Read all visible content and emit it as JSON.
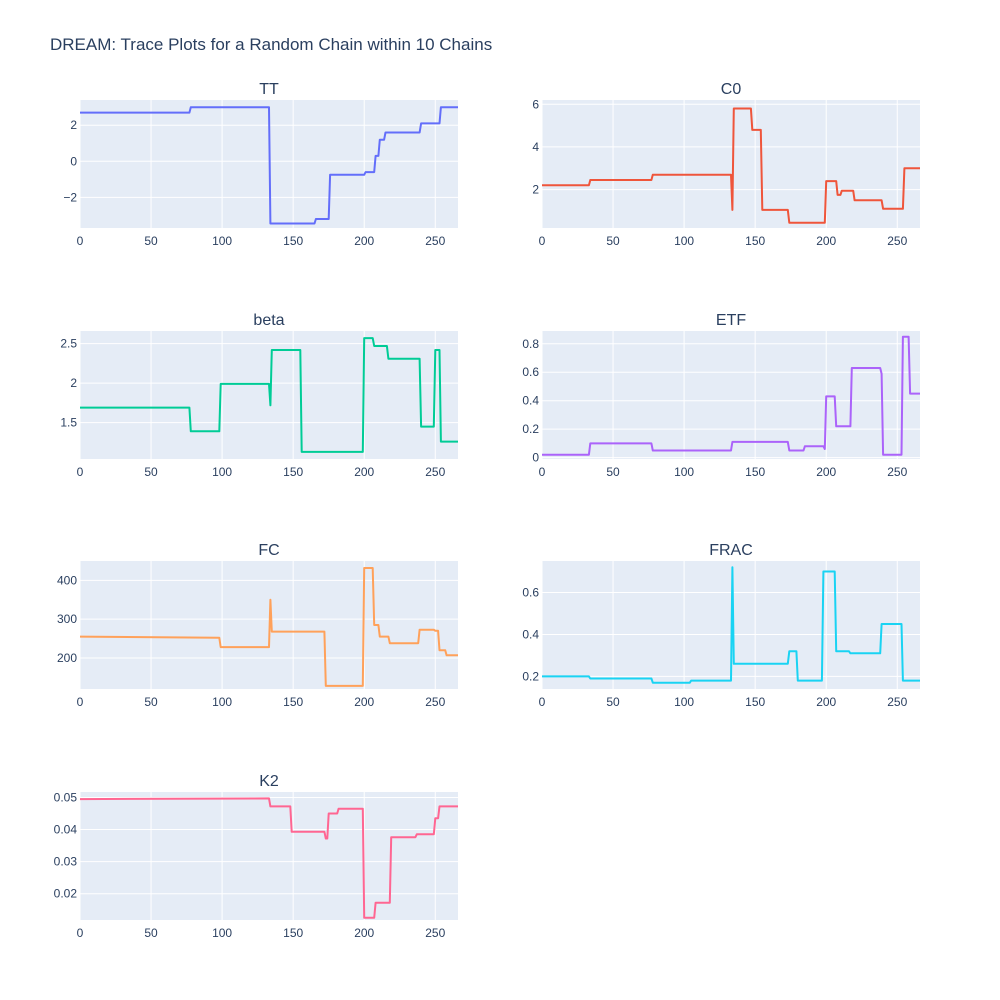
{
  "title": "DREAM: Trace Plots for a Random Chain within 10 Chains",
  "chart_data": [
    {
      "type": "line",
      "title": "TT",
      "xlim": [
        0,
        266
      ],
      "ylim": [
        -3.7,
        3.4
      ],
      "xticks": [
        0,
        50,
        100,
        150,
        200,
        250
      ],
      "yticks": [
        -2,
        0,
        2
      ],
      "ytick_labels": [
        "−2",
        "0",
        "2"
      ],
      "series": [
        {
          "color": "#636efa",
          "x": [
            0,
            77,
            78,
            133,
            134,
            165,
            166,
            175,
            176,
            200,
            201,
            207,
            208,
            210,
            211,
            214,
            215,
            225,
            226,
            239,
            240,
            253,
            254,
            266
          ],
          "y": [
            2.7,
            2.7,
            3.0,
            3.0,
            -3.45,
            -3.45,
            -3.2,
            -3.2,
            -0.75,
            -0.75,
            -0.6,
            -0.6,
            0.3,
            0.3,
            1.2,
            1.2,
            1.6,
            1.6,
            1.6,
            1.6,
            2.1,
            2.1,
            3.0,
            3.0
          ]
        }
      ]
    },
    {
      "type": "line",
      "title": "C0",
      "xlim": [
        0,
        266
      ],
      "ylim": [
        0.2,
        6.2
      ],
      "xticks": [
        0,
        50,
        100,
        150,
        200,
        250
      ],
      "yticks": [
        2,
        4,
        6
      ],
      "ytick_labels": [
        "2",
        "4",
        "6"
      ],
      "series": [
        {
          "color": "#EF553B",
          "x": [
            0,
            33,
            34,
            77,
            78,
            133,
            134,
            135,
            136,
            147,
            148,
            154,
            155,
            173,
            174,
            199,
            200,
            207,
            208,
            210,
            211,
            216,
            217,
            219,
            220,
            239,
            240,
            254,
            255,
            266
          ],
          "y": [
            2.2,
            2.2,
            2.45,
            2.45,
            2.7,
            2.7,
            1.05,
            5.8,
            5.8,
            5.8,
            4.8,
            4.8,
            1.05,
            1.05,
            0.45,
            0.45,
            2.4,
            2.4,
            1.75,
            1.75,
            1.95,
            1.95,
            1.95,
            1.95,
            1.5,
            1.5,
            1.1,
            1.1,
            3.0,
            3.0
          ]
        }
      ]
    },
    {
      "type": "line",
      "title": "beta",
      "xlim": [
        0,
        266
      ],
      "ylim": [
        1.04,
        2.66
      ],
      "xticks": [
        0,
        50,
        100,
        150,
        200,
        250
      ],
      "yticks": [
        1.5,
        2,
        2.5
      ],
      "ytick_labels": [
        "1.5",
        "2",
        "2.5"
      ],
      "series": [
        {
          "color": "#00cc96",
          "x": [
            0,
            77,
            78,
            98,
            99,
            133,
            134,
            135,
            136,
            155,
            156,
            199,
            200,
            206,
            207,
            216,
            217,
            239,
            240,
            249,
            250,
            253,
            254,
            266
          ],
          "y": [
            1.69,
            1.69,
            1.39,
            1.39,
            1.99,
            1.99,
            1.72,
            2.42,
            2.42,
            2.42,
            1.13,
            1.13,
            2.57,
            2.57,
            2.47,
            2.47,
            2.31,
            2.31,
            1.45,
            1.45,
            2.42,
            2.42,
            1.26,
            1.26
          ]
        }
      ]
    },
    {
      "type": "line",
      "title": "ETF",
      "xlim": [
        0,
        266
      ],
      "ylim": [
        -0.01,
        0.89
      ],
      "xticks": [
        0,
        50,
        100,
        150,
        200,
        250
      ],
      "yticks": [
        0,
        0.2,
        0.4,
        0.6,
        0.8
      ],
      "ytick_labels": [
        "0",
        "0.2",
        "0.4",
        "0.6",
        "0.8"
      ],
      "series": [
        {
          "color": "#ab63fa",
          "x": [
            0,
            33,
            34,
            77,
            78,
            133,
            134,
            173,
            174,
            184,
            185,
            198,
            199,
            200,
            201,
            206,
            207,
            217,
            218,
            238,
            239,
            240,
            241,
            253,
            254,
            258,
            259,
            266
          ],
          "y": [
            0.02,
            0.02,
            0.1,
            0.1,
            0.05,
            0.05,
            0.11,
            0.11,
            0.05,
            0.05,
            0.08,
            0.08,
            0.06,
            0.43,
            0.43,
            0.43,
            0.22,
            0.22,
            0.63,
            0.63,
            0.59,
            0.02,
            0.02,
            0.02,
            0.85,
            0.85,
            0.45,
            0.45
          ]
        }
      ]
    },
    {
      "type": "line",
      "title": "FC",
      "xlim": [
        0,
        266
      ],
      "ylim": [
        120,
        450
      ],
      "xticks": [
        0,
        50,
        100,
        150,
        200,
        250
      ],
      "yticks": [
        200,
        300,
        400
      ],
      "ytick_labels": [
        "200",
        "300",
        "400"
      ],
      "series": [
        {
          "color": "#FFA15A",
          "x": [
            0,
            98,
            99,
            133,
            134,
            135,
            136,
            172,
            173,
            199,
            200,
            206,
            207,
            210,
            211,
            217,
            218,
            238,
            239,
            249,
            250,
            252,
            253,
            257,
            258,
            266
          ],
          "y": [
            255,
            252,
            228,
            228,
            350,
            268,
            268,
            268,
            128,
            128,
            432,
            432,
            285,
            285,
            255,
            255,
            238,
            238,
            273,
            273,
            270,
            270,
            220,
            220,
            207,
            207
          ]
        }
      ]
    },
    {
      "type": "line",
      "title": "FRAC",
      "xlim": [
        0,
        266
      ],
      "ylim": [
        0.14,
        0.75
      ],
      "xticks": [
        0,
        50,
        100,
        150,
        200,
        250
      ],
      "yticks": [
        0.2,
        0.4,
        0.6
      ],
      "ytick_labels": [
        "0.2",
        "0.4",
        "0.6"
      ],
      "series": [
        {
          "color": "#19d3f3",
          "x": [
            0,
            33,
            34,
            77,
            78,
            104,
            105,
            132,
            133,
            134,
            135,
            173,
            174,
            179,
            180,
            197,
            198,
            206,
            207,
            216,
            217,
            238,
            239,
            253,
            254,
            266
          ],
          "y": [
            0.2,
            0.2,
            0.19,
            0.19,
            0.17,
            0.17,
            0.18,
            0.18,
            0.18,
            0.72,
            0.26,
            0.26,
            0.32,
            0.32,
            0.18,
            0.18,
            0.7,
            0.7,
            0.32,
            0.32,
            0.31,
            0.31,
            0.45,
            0.45,
            0.18,
            0.18
          ]
        }
      ]
    },
    {
      "type": "line",
      "title": "K2",
      "xlim": [
        0,
        266
      ],
      "ylim": [
        0.0118,
        0.0517
      ],
      "xticks": [
        0,
        50,
        100,
        150,
        200,
        250
      ],
      "yticks": [
        0.02,
        0.03,
        0.04,
        0.05
      ],
      "ytick_labels": [
        "0.02",
        "0.03",
        "0.04",
        "0.05"
      ],
      "series": [
        {
          "color": "#FF6692",
          "x": [
            0,
            133,
            134,
            148,
            149,
            172,
            173,
            174,
            175,
            181,
            182,
            199,
            200,
            207,
            208,
            218,
            219,
            236,
            237,
            249,
            250,
            252,
            253,
            266
          ],
          "y": [
            0.0495,
            0.0497,
            0.0472,
            0.0472,
            0.0393,
            0.0393,
            0.0372,
            0.0372,
            0.045,
            0.045,
            0.0465,
            0.0465,
            0.0125,
            0.0125,
            0.0172,
            0.0172,
            0.0376,
            0.0376,
            0.0385,
            0.0385,
            0.0435,
            0.0435,
            0.0472,
            0.0472
          ]
        }
      ]
    }
  ]
}
